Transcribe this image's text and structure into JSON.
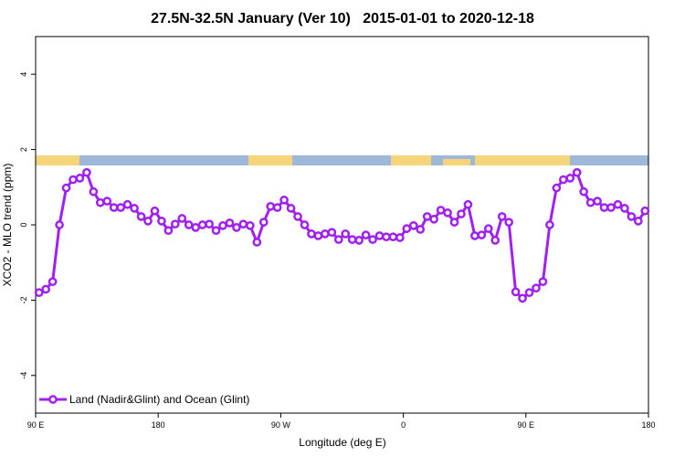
{
  "chart_data": {
    "type": "line",
    "title": "27.5N-32.5N January (Ver 10)   2015-01-01 to 2020-12-18",
    "x_label": "Longitude (deg E)",
    "y_label": "XCO2 - MLO trend (ppm)",
    "xlim": [
      90,
      540
    ],
    "xticks": [
      {
        "value": 90,
        "label": "90 E"
      },
      180,
      {
        "value": 270,
        "label": "90 W"
      },
      {
        "value": 360,
        "label": "0"
      },
      {
        "value": 450,
        "label": "90 E"
      },
      {
        "value": 540,
        "label": "180"
      }
    ],
    "ylim": [
      -5,
      5
    ],
    "yticks": [
      -4,
      -2,
      0,
      2,
      4
    ],
    "legend": "bottom-left",
    "x": [
      92.5,
      97.5,
      102.5,
      107.5,
      112.5,
      117.5,
      122.5,
      127.5,
      132.5,
      137.5,
      142.5,
      147.5,
      152.5,
      157.5,
      162.5,
      167.5,
      172.5,
      177.5,
      182.5,
      187.5,
      192.5,
      197.5,
      202.5,
      207.5,
      212.5,
      217.5,
      222.5,
      227.5,
      232.5,
      237.5,
      242.5,
      247.5,
      252.5,
      257.5,
      262.5,
      267.5,
      272.5,
      277.5,
      282.5,
      287.5,
      292.5,
      297.5,
      302.5,
      307.5,
      312.5,
      317.5,
      322.5,
      327.5,
      332.5,
      337.5,
      342.5,
      347.5,
      352.5,
      357.5,
      362.5,
      367.5,
      372.5,
      377.5,
      382.5,
      387.5,
      392.5,
      397.5,
      402.5,
      407.5,
      412.5,
      417.5,
      422.5,
      427.5,
      432.5,
      437.5,
      442.5,
      447.5,
      452.5,
      457.5,
      462.5,
      467.5,
      472.5,
      477.5,
      482.5,
      487.5,
      492.5,
      497.5,
      502.5,
      507.5,
      512.5,
      517.5,
      522.5,
      527.5,
      532.5,
      537.5
    ],
    "series": [
      {
        "name": "Land (Nadir&Glint) and Ocean (Glint)",
        "color": "#a020f0",
        "values": [
          -1.8,
          -1.71,
          -1.51,
          0.0,
          0.98,
          1.2,
          1.24,
          1.39,
          0.88,
          0.59,
          0.63,
          0.46,
          0.46,
          0.54,
          0.44,
          0.22,
          0.1,
          0.37,
          0.1,
          -0.15,
          0.02,
          0.17,
          0.0,
          -0.07,
          0.0,
          0.02,
          -0.15,
          -0.02,
          0.05,
          -0.07,
          0.02,
          -0.02,
          -0.46,
          0.07,
          0.49,
          0.46,
          0.66,
          0.44,
          0.22,
          0.0,
          -0.24,
          -0.29,
          -0.24,
          -0.2,
          -0.39,
          -0.24,
          -0.39,
          -0.41,
          -0.27,
          -0.39,
          -0.29,
          -0.32,
          -0.32,
          -0.34,
          -0.1,
          -0.02,
          -0.12,
          0.22,
          0.15,
          0.39,
          0.32,
          0.07,
          0.29,
          0.54,
          -0.29,
          -0.27,
          -0.1,
          -0.41,
          0.22,
          0.07,
          -1.78,
          -1.95,
          -1.8,
          -1.68,
          -1.51,
          0.0,
          0.98,
          1.2,
          1.24,
          1.39,
          0.88,
          0.59,
          0.63,
          0.46,
          0.46,
          0.54,
          0.44,
          0.22,
          0.1,
          0.37
        ]
      }
    ]
  }
}
